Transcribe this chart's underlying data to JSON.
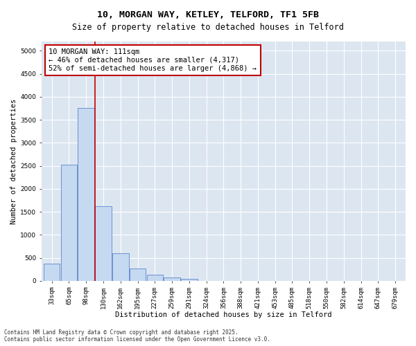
{
  "title_line1": "10, MORGAN WAY, KETLEY, TELFORD, TF1 5FB",
  "title_line2": "Size of property relative to detached houses in Telford",
  "xlabel": "Distribution of detached houses by size in Telford",
  "ylabel": "Number of detached properties",
  "categories": [
    "33sqm",
    "65sqm",
    "98sqm",
    "130sqm",
    "162sqm",
    "195sqm",
    "227sqm",
    "259sqm",
    "291sqm",
    "324sqm",
    "356sqm",
    "388sqm",
    "421sqm",
    "453sqm",
    "485sqm",
    "518sqm",
    "550sqm",
    "582sqm",
    "614sqm",
    "647sqm",
    "679sqm"
  ],
  "values": [
    380,
    2520,
    3750,
    1630,
    600,
    270,
    130,
    70,
    40,
    0,
    0,
    0,
    0,
    0,
    0,
    0,
    0,
    0,
    0,
    0,
    0
  ],
  "bar_color": "#c5d9f1",
  "bar_edgecolor": "#4472c4",
  "vline_x": 2.5,
  "vline_color": "#c00000",
  "annotation_line1": "10 MORGAN WAY: 111sqm",
  "annotation_line2": "← 46% of detached houses are smaller (4,317)",
  "annotation_line3": "52% of semi-detached houses are larger (4,868) →",
  "annotation_box_color": "#ffffff",
  "annotation_box_edgecolor": "#c00000",
  "ylim": [
    0,
    5200
  ],
  "yticks": [
    0,
    500,
    1000,
    1500,
    2000,
    2500,
    3000,
    3500,
    4000,
    4500,
    5000
  ],
  "background_color": "#dce6f1",
  "footer_text": "Contains HM Land Registry data © Crown copyright and database right 2025.\nContains public sector information licensed under the Open Government Licence v3.0.",
  "title_fontsize": 9.5,
  "subtitle_fontsize": 8.5,
  "axis_label_fontsize": 7.5,
  "tick_fontsize": 6.5,
  "annotation_fontsize": 7.5,
  "footer_fontsize": 5.5
}
